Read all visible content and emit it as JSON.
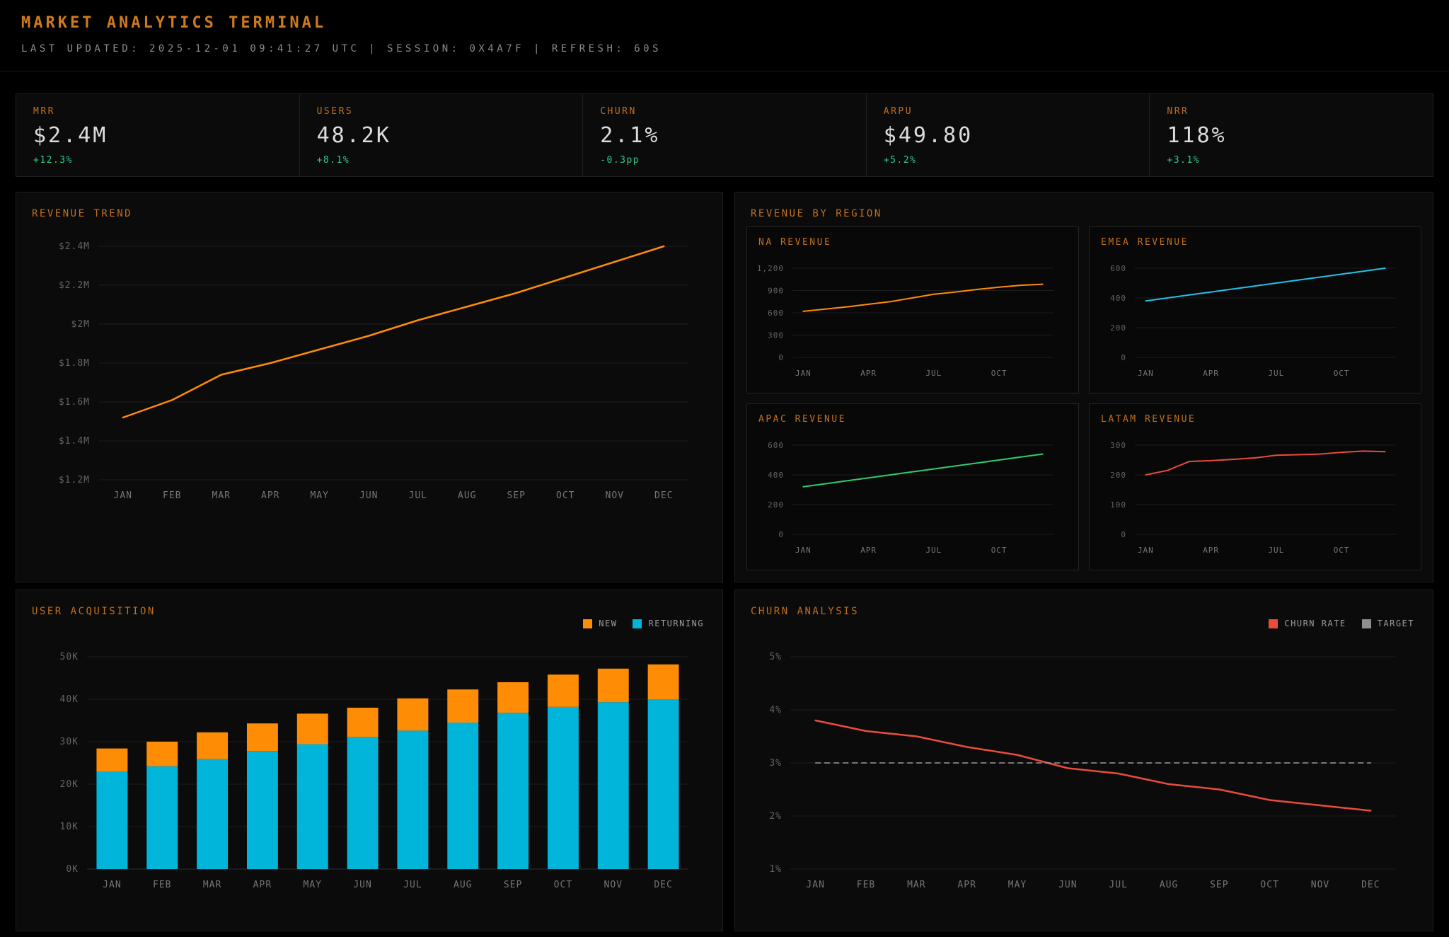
{
  "header": {
    "title": "MARKET ANALYTICS TERMINAL",
    "subtitle": "LAST UPDATED: 2025-12-01 09:41:27 UTC | SESSION: 0X4A7F | REFRESH: 60S"
  },
  "colors": {
    "title_orange": "#c06f1c",
    "data_orange": "#ff8c05",
    "data_cyan": "#00b4da",
    "data_green": "#2ecc71",
    "data_red": "#e84c3d",
    "target_gray": "#8f8f8f",
    "delta_green": "#2fcb87"
  },
  "kpis": [
    {
      "label": "MRR",
      "value": "$2.4M",
      "delta": "+12.3%"
    },
    {
      "label": "USERS",
      "value": "48.2K",
      "delta": "+8.1%"
    },
    {
      "label": "CHURN",
      "value": "2.1%",
      "delta": "-0.3pp"
    },
    {
      "label": "ARPU",
      "value": "$49.80",
      "delta": "+5.2%"
    },
    {
      "label": "NRR",
      "value": "118%",
      "delta": "+3.1%"
    }
  ],
  "panels": {
    "revenue_by_region": "REVENUE BY REGION"
  },
  "chart_data": [
    {
      "id": "revenue-trend",
      "type": "line",
      "title": "REVENUE TREND",
      "categories": [
        "JAN",
        "FEB",
        "MAR",
        "APR",
        "MAY",
        "JUN",
        "JUL",
        "AUG",
        "SEP",
        "OCT",
        "NOV",
        "DEC"
      ],
      "x_ticks": [
        {
          "i": 0,
          "label": "JAN"
        },
        {
          "i": 1,
          "label": "FEB"
        },
        {
          "i": 2,
          "label": "MAR"
        },
        {
          "i": 3,
          "label": "APR"
        },
        {
          "i": 4,
          "label": "MAY"
        },
        {
          "i": 5,
          "label": "JUN"
        },
        {
          "i": 6,
          "label": "JUL"
        },
        {
          "i": 7,
          "label": "AUG"
        },
        {
          "i": 8,
          "label": "SEP"
        },
        {
          "i": 9,
          "label": "OCT"
        },
        {
          "i": 10,
          "label": "NOV"
        },
        {
          "i": 11,
          "label": "DEC"
        }
      ],
      "ylim": [
        1.2,
        2.4
      ],
      "ytick_values": [
        1.2,
        1.4,
        1.6,
        1.8,
        2.0,
        2.2,
        2.4
      ],
      "ytick_labels": [
        "$1.2M",
        "$1.4M",
        "$1.6M",
        "$1.8M",
        "$2M",
        "$2.2M",
        "$2.4M"
      ],
      "series": [
        {
          "name": "REVENUE",
          "color": "#ff8c05",
          "values": [
            1.52,
            1.61,
            1.74,
            1.8,
            1.87,
            1.94,
            2.02,
            2.09,
            2.16,
            2.24,
            2.32,
            2.4
          ]
        }
      ]
    },
    {
      "id": "na-revenue",
      "type": "line",
      "title": "NA REVENUE",
      "categories": [
        "JAN",
        "FEB",
        "MAR",
        "APR",
        "MAY",
        "JUN",
        "JUL",
        "AUG",
        "SEP",
        "OCT",
        "NOV",
        "DEC"
      ],
      "x_ticks": [
        {
          "i": 0,
          "label": "JAN"
        },
        {
          "i": 3,
          "label": "APR"
        },
        {
          "i": 6,
          "label": "JUL"
        },
        {
          "i": 9,
          "label": "OCT"
        }
      ],
      "ylim": [
        0,
        1200
      ],
      "ytick_values": [
        0,
        300,
        600,
        900,
        1200
      ],
      "ytick_labels": [
        "0",
        "300",
        "600",
        "900",
        "1,200"
      ],
      "series": [
        {
          "name": "NA",
          "color": "#ff8c05",
          "values": [
            620,
            650,
            680,
            715,
            750,
            800,
            850,
            880,
            915,
            945,
            970,
            985
          ]
        }
      ]
    },
    {
      "id": "emea-revenue",
      "type": "line",
      "title": "EMEA REVENUE",
      "categories": [
        "JAN",
        "FEB",
        "MAR",
        "APR",
        "MAY",
        "JUN",
        "JUL",
        "AUG",
        "SEP",
        "OCT",
        "NOV",
        "DEC"
      ],
      "x_ticks": [
        {
          "i": 0,
          "label": "JAN"
        },
        {
          "i": 3,
          "label": "APR"
        },
        {
          "i": 6,
          "label": "JUL"
        },
        {
          "i": 9,
          "label": "OCT"
        }
      ],
      "ylim": [
        0,
        600
      ],
      "ytick_values": [
        0,
        200,
        400,
        600
      ],
      "ytick_labels": [
        "0",
        "200",
        "400",
        "600"
      ],
      "series": [
        {
          "name": "EMEA",
          "color": "#22c0e8",
          "values": [
            380,
            400,
            420,
            440,
            460,
            480,
            500,
            520,
            540,
            560,
            580,
            600
          ]
        }
      ]
    },
    {
      "id": "apac-revenue",
      "type": "line",
      "title": "APAC REVENUE",
      "categories": [
        "JAN",
        "FEB",
        "MAR",
        "APR",
        "MAY",
        "JUN",
        "JUL",
        "AUG",
        "SEP",
        "OCT",
        "NOV",
        "DEC"
      ],
      "x_ticks": [
        {
          "i": 0,
          "label": "JAN"
        },
        {
          "i": 3,
          "label": "APR"
        },
        {
          "i": 6,
          "label": "JUL"
        },
        {
          "i": 9,
          "label": "OCT"
        }
      ],
      "ylim": [
        0,
        600
      ],
      "ytick_values": [
        0,
        200,
        400,
        600
      ],
      "ytick_labels": [
        "0",
        "200",
        "400",
        "600"
      ],
      "series": [
        {
          "name": "APAC",
          "color": "#2ecc71",
          "values": [
            320,
            340,
            360,
            380,
            400,
            420,
            440,
            460,
            480,
            500,
            520,
            540
          ]
        }
      ]
    },
    {
      "id": "latam-revenue",
      "type": "line",
      "title": "LATAM REVENUE",
      "categories": [
        "JAN",
        "FEB",
        "MAR",
        "APR",
        "MAY",
        "JUN",
        "JUL",
        "AUG",
        "SEP",
        "OCT",
        "NOV",
        "DEC"
      ],
      "x_ticks": [
        {
          "i": 0,
          "label": "JAN"
        },
        {
          "i": 3,
          "label": "APR"
        },
        {
          "i": 6,
          "label": "JUL"
        },
        {
          "i": 9,
          "label": "OCT"
        }
      ],
      "ylim": [
        0,
        300
      ],
      "ytick_values": [
        0,
        100,
        200,
        300
      ],
      "ytick_labels": [
        "0",
        "100",
        "200",
        "300"
      ],
      "series": [
        {
          "name": "LATAM",
          "color": "#e84c3d",
          "values": [
            200,
            215,
            245,
            248,
            252,
            257,
            266,
            268,
            270,
            276,
            280,
            278
          ]
        }
      ]
    },
    {
      "id": "user-acquisition",
      "type": "bar",
      "title": "USER ACQUISITION",
      "categories": [
        "JAN",
        "FEB",
        "MAR",
        "APR",
        "MAY",
        "JUN",
        "JUL",
        "AUG",
        "SEP",
        "OCT",
        "NOV",
        "DEC"
      ],
      "x_ticks": [
        {
          "i": 0,
          "label": "JAN"
        },
        {
          "i": 1,
          "label": "FEB"
        },
        {
          "i": 2,
          "label": "MAR"
        },
        {
          "i": 3,
          "label": "APR"
        },
        {
          "i": 4,
          "label": "MAY"
        },
        {
          "i": 5,
          "label": "JUN"
        },
        {
          "i": 6,
          "label": "JUL"
        },
        {
          "i": 7,
          "label": "AUG"
        },
        {
          "i": 8,
          "label": "SEP"
        },
        {
          "i": 9,
          "label": "OCT"
        },
        {
          "i": 10,
          "label": "NOV"
        },
        {
          "i": 11,
          "label": "DEC"
        }
      ],
      "ylim": [
        0,
        50
      ],
      "ytick_values": [
        0,
        10,
        20,
        30,
        40,
        50
      ],
      "ytick_labels": [
        "0K",
        "10K",
        "20K",
        "30K",
        "40K",
        "50K"
      ],
      "series": [
        {
          "name": "RETURNING",
          "color": "#00b4da",
          "values": [
            23.0,
            24.2,
            25.9,
            27.8,
            29.4,
            31.1,
            32.6,
            34.5,
            36.8,
            38.2,
            39.3,
            40.0
          ]
        },
        {
          "name": "NEW",
          "color": "#ff8c05",
          "values": [
            5.4,
            5.8,
            6.3,
            6.5,
            7.2,
            6.9,
            7.6,
            7.8,
            7.2,
            7.6,
            7.9,
            8.2
          ]
        }
      ],
      "legend": [
        {
          "label": "NEW",
          "color": "#ff8c05"
        },
        {
          "label": "RETURNING",
          "color": "#00b4da"
        }
      ]
    },
    {
      "id": "churn-analysis",
      "type": "line",
      "title": "CHURN ANALYSIS",
      "categories": [
        "JAN",
        "FEB",
        "MAR",
        "APR",
        "MAY",
        "JUN",
        "JUL",
        "AUG",
        "SEP",
        "OCT",
        "NOV",
        "DEC"
      ],
      "x_ticks": [
        {
          "i": 0,
          "label": "JAN"
        },
        {
          "i": 1,
          "label": "FEB"
        },
        {
          "i": 2,
          "label": "MAR"
        },
        {
          "i": 3,
          "label": "APR"
        },
        {
          "i": 4,
          "label": "MAY"
        },
        {
          "i": 5,
          "label": "JUN"
        },
        {
          "i": 6,
          "label": "JUL"
        },
        {
          "i": 7,
          "label": "AUG"
        },
        {
          "i": 8,
          "label": "SEP"
        },
        {
          "i": 9,
          "label": "OCT"
        },
        {
          "i": 10,
          "label": "NOV"
        },
        {
          "i": 11,
          "label": "DEC"
        }
      ],
      "ylim": [
        1,
        5
      ],
      "ytick_values": [
        1,
        2,
        3,
        4,
        5
      ],
      "ytick_labels": [
        "1%",
        "2%",
        "3%",
        "4%",
        "5%"
      ],
      "series": [
        {
          "name": "CHURN RATE",
          "color": "#e84c3d",
          "values": [
            3.8,
            3.6,
            3.5,
            3.3,
            3.15,
            2.9,
            2.8,
            2.6,
            2.5,
            2.3,
            2.2,
            2.1
          ]
        },
        {
          "name": "TARGET",
          "color": "#9a9a9a",
          "dash": true,
          "values": [
            3,
            3,
            3,
            3,
            3,
            3,
            3,
            3,
            3,
            3,
            3,
            3
          ]
        }
      ],
      "legend": [
        {
          "label": "CHURN RATE",
          "color": "#e84c3d"
        },
        {
          "label": "TARGET",
          "color": "#8f8f8f"
        }
      ]
    }
  ]
}
